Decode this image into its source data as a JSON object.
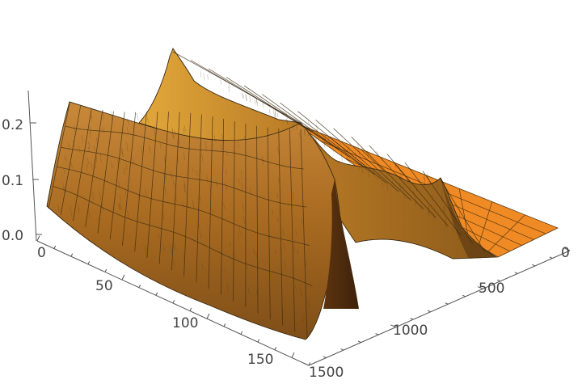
{
  "chart_data": {
    "type": "surface",
    "title": "",
    "xlabel": "",
    "ylabel": "",
    "zlabel": "",
    "x_axis": {
      "range": [
        0,
        160
      ],
      "ticks": [
        "0",
        "50",
        "100",
        "150"
      ]
    },
    "y_axis": {
      "range": [
        0,
        1500
      ],
      "ticks": [
        "0",
        "500",
        "1000",
        "1500"
      ]
    },
    "z_axis": {
      "range": [
        0,
        0.25
      ],
      "ticks": [
        "0.0",
        "0.1",
        "0.2"
      ]
    },
    "ridges": [
      {
        "name": "",
        "x_start": 0,
        "x_end": 160,
        "y_center": 1050,
        "peak_height": 0.21
      },
      {
        "name": "",
        "x_start": 0,
        "x_end": 90,
        "y_center": 130,
        "peak_height": 0.12
      }
    ],
    "peak_features": [
      {
        "x": 0,
        "y": 1050,
        "z": 0.24
      },
      {
        "x": 80,
        "y": 130,
        "z": 0.11
      }
    ],
    "surface_color": "#c17f24",
    "floor_color": "#f08a24",
    "mesh_color": "#3a2a12"
  }
}
